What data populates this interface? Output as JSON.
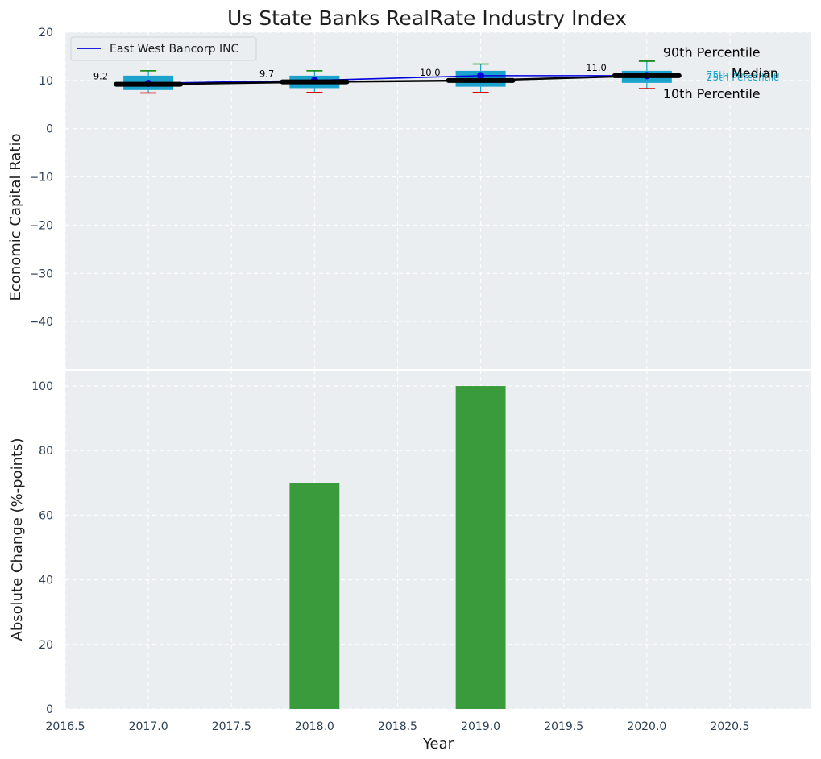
{
  "chart_data": {
    "title": "Us State Banks RealRate Industry Index",
    "xlabel": "Year",
    "x_ticks": [
      "2016.5",
      "2017.0",
      "2017.5",
      "2018.0",
      "2018.5",
      "2019.0",
      "2019.5",
      "2020.0",
      "2020.5"
    ],
    "x_tick_values": [
      2016.5,
      2017.0,
      2017.5,
      2018.0,
      2018.5,
      2019.0,
      2019.5,
      2020.0,
      2020.5
    ],
    "xlim": [
      2016.5,
      2020.99
    ],
    "grid": true,
    "top": {
      "type": "box",
      "ylabel": "Economic Capital Ratio",
      "ylim": [
        -50,
        20
      ],
      "y_ticks": [
        "20",
        "10",
        "0",
        "−10",
        "−20",
        "−30",
        "−40"
      ],
      "y_tick_values": [
        20,
        10,
        0,
        -10,
        -20,
        -30,
        -40
      ],
      "years": [
        2017,
        2018,
        2019,
        2020
      ],
      "p10": [
        7.4,
        7.5,
        7.5,
        8.3
      ],
      "p25": [
        8.0,
        8.4,
        8.7,
        9.5
      ],
      "median": [
        9.2,
        9.7,
        10.0,
        11.0
      ],
      "p75": [
        11.0,
        11.0,
        12.0,
        12.0
      ],
      "p90": [
        12.0,
        12.0,
        13.4,
        14.0
      ],
      "median_labels": [
        "9.2",
        "9.7",
        "10.0",
        "11.0"
      ],
      "series": [
        {
          "name": "East West Bancorp INC",
          "values": [
            9.4,
            10.0,
            11.0,
            11.0
          ],
          "color": "#0000dd"
        }
      ],
      "median_line": [
        9.2,
        9.7,
        10.0,
        11.0
      ],
      "percentile_labels": {
        "p90": "90th Percentile",
        "median": "Median",
        "p10": "10th Percentile",
        "p75": "75th Percentile",
        "p25": "25th Percentile"
      },
      "colors": {
        "box": "#1ba3cd",
        "p90": "#008000",
        "p10": "#dd0000",
        "median": "#000000"
      }
    },
    "bottom": {
      "type": "bar",
      "ylabel": "Absolute Change (%-points)",
      "ylim": [
        0,
        105
      ],
      "y_ticks": [
        "0",
        "20",
        "40",
        "60",
        "80",
        "100"
      ],
      "y_tick_values": [
        0,
        20,
        40,
        60,
        80,
        100
      ],
      "categories": [
        2017,
        2018,
        2019,
        2020
      ],
      "values": [
        0,
        70,
        100,
        0
      ],
      "bar_width": 0.3,
      "color": "#3a9b3c"
    },
    "legend": {
      "position": "top-left",
      "entries": [
        "East West Bancorp INC"
      ]
    }
  }
}
